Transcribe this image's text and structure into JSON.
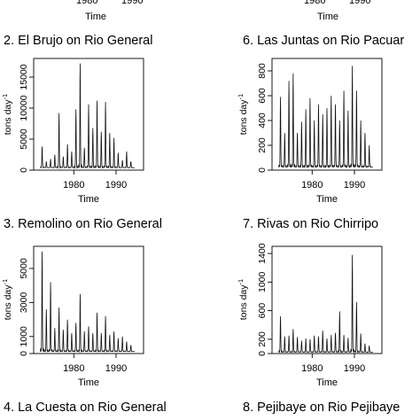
{
  "top_strip": {
    "left": {
      "ticks": [
        "1980",
        "1990"
      ],
      "xlabel": "Time"
    },
    "right": {
      "ticks": [
        "1980",
        "1990"
      ],
      "xlabel": "Time"
    }
  },
  "titles": [
    "2. El Brujo on Rio General",
    "6. Las Juntas on Rio Pacuar",
    "3. Remolino on Rio General",
    "7. Rivas on Rio Chirripo",
    "4. La Cuesta on Rio General",
    "8. Pejibaye on Rio Pejibaye"
  ],
  "chart_data": [
    {
      "type": "line",
      "title": "2. El Brujo on Rio General",
      "xlabel": "Time",
      "ylabel": "tons day-1",
      "xlim": [
        1970.5,
        1996.5
      ],
      "ylim": [
        0,
        18000
      ],
      "x_ticks": [
        1980,
        1990
      ],
      "y_ticks": [
        0,
        5000,
        10000,
        15000
      ],
      "x_start": 1972.0,
      "x_end": 1994.4,
      "peaks": [
        {
          "x": 1972.5,
          "y": 3800
        },
        {
          "x": 1973.5,
          "y": 1400
        },
        {
          "x": 1974.5,
          "y": 1800
        },
        {
          "x": 1975.5,
          "y": 2500
        },
        {
          "x": 1976.5,
          "y": 9200
        },
        {
          "x": 1977.5,
          "y": 2200
        },
        {
          "x": 1978.5,
          "y": 4200
        },
        {
          "x": 1979.5,
          "y": 3000
        },
        {
          "x": 1980.5,
          "y": 9800
        },
        {
          "x": 1981.5,
          "y": 17200
        },
        {
          "x": 1982.5,
          "y": 3600
        },
        {
          "x": 1983.5,
          "y": 10600
        },
        {
          "x": 1984.5,
          "y": 6800
        },
        {
          "x": 1985.5,
          "y": 11200
        },
        {
          "x": 1986.5,
          "y": 6200
        },
        {
          "x": 1987.5,
          "y": 11000
        },
        {
          "x": 1988.5,
          "y": 6000
        },
        {
          "x": 1989.5,
          "y": 5200
        },
        {
          "x": 1990.5,
          "y": 2800
        },
        {
          "x": 1991.5,
          "y": 1600
        },
        {
          "x": 1992.5,
          "y": 3000
        },
        {
          "x": 1993.5,
          "y": 1400
        }
      ],
      "baseline": 400
    },
    {
      "type": "line",
      "title": "6. Las Juntas on Rio Pacuar",
      "xlabel": "Time",
      "ylabel": "tons day-1",
      "xlim": [
        1970.5,
        1996.5
      ],
      "ylim": [
        0,
        900
      ],
      "x_ticks": [
        1980,
        1990
      ],
      "y_ticks": [
        0,
        200,
        400,
        600,
        800
      ],
      "x_start": 1972.0,
      "x_end": 1994.4,
      "peaks": [
        {
          "x": 1972.5,
          "y": 590
        },
        {
          "x": 1973.5,
          "y": 300
        },
        {
          "x": 1974.5,
          "y": 720
        },
        {
          "x": 1975.5,
          "y": 780
        },
        {
          "x": 1976.5,
          "y": 300
        },
        {
          "x": 1977.5,
          "y": 390
        },
        {
          "x": 1978.5,
          "y": 490
        },
        {
          "x": 1979.5,
          "y": 580
        },
        {
          "x": 1980.5,
          "y": 400
        },
        {
          "x": 1981.5,
          "y": 530
        },
        {
          "x": 1982.5,
          "y": 450
        },
        {
          "x": 1983.5,
          "y": 500
        },
        {
          "x": 1984.5,
          "y": 600
        },
        {
          "x": 1985.5,
          "y": 530
        },
        {
          "x": 1986.5,
          "y": 400
        },
        {
          "x": 1987.5,
          "y": 640
        },
        {
          "x": 1988.5,
          "y": 480
        },
        {
          "x": 1989.5,
          "y": 840
        },
        {
          "x": 1990.5,
          "y": 640
        },
        {
          "x": 1991.5,
          "y": 400
        },
        {
          "x": 1992.5,
          "y": 300
        },
        {
          "x": 1993.5,
          "y": 200
        }
      ],
      "baseline": 25
    },
    {
      "type": "line",
      "title": "3. Remolino on Rio General",
      "xlabel": "Time",
      "ylabel": "tons day-1",
      "xlim": [
        1970.5,
        1996.5
      ],
      "ylim": [
        0,
        6300
      ],
      "x_ticks": [
        1980,
        1990
      ],
      "y_ticks": [
        0,
        1000,
        3000,
        5000
      ],
      "x_start": 1972.0,
      "x_end": 1994.4,
      "peaks": [
        {
          "x": 1972.5,
          "y": 6000
        },
        {
          "x": 1973.5,
          "y": 2600
        },
        {
          "x": 1974.5,
          "y": 4200
        },
        {
          "x": 1975.5,
          "y": 1500
        },
        {
          "x": 1976.5,
          "y": 2700
        },
        {
          "x": 1977.5,
          "y": 1400
        },
        {
          "x": 1978.5,
          "y": 2000
        },
        {
          "x": 1979.5,
          "y": 1200
        },
        {
          "x": 1980.5,
          "y": 1800
        },
        {
          "x": 1981.5,
          "y": 3500
        },
        {
          "x": 1982.5,
          "y": 1300
        },
        {
          "x": 1983.5,
          "y": 1600
        },
        {
          "x": 1984.5,
          "y": 1200
        },
        {
          "x": 1985.5,
          "y": 2400
        },
        {
          "x": 1986.5,
          "y": 1200
        },
        {
          "x": 1987.5,
          "y": 2200
        },
        {
          "x": 1988.5,
          "y": 1100
        },
        {
          "x": 1989.5,
          "y": 1300
        },
        {
          "x": 1990.5,
          "y": 900
        },
        {
          "x": 1991.5,
          "y": 1000
        },
        {
          "x": 1992.5,
          "y": 700
        },
        {
          "x": 1993.5,
          "y": 500
        }
      ],
      "baseline": 120
    },
    {
      "type": "line",
      "title": "7. Rivas on Rio Chirripo",
      "xlabel": "Time",
      "ylabel": "tons day-1",
      "xlim": [
        1970.5,
        1996.5
      ],
      "ylim": [
        0,
        1500
      ],
      "x_ticks": [
        1980,
        1990
      ],
      "y_ticks": [
        0,
        200,
        600,
        1000,
        1400
      ],
      "x_start": 1972.0,
      "x_end": 1994.4,
      "peaks": [
        {
          "x": 1972.5,
          "y": 520
        },
        {
          "x": 1973.5,
          "y": 240
        },
        {
          "x": 1974.5,
          "y": 250
        },
        {
          "x": 1975.5,
          "y": 340
        },
        {
          "x": 1976.5,
          "y": 230
        },
        {
          "x": 1977.5,
          "y": 180
        },
        {
          "x": 1978.5,
          "y": 210
        },
        {
          "x": 1979.5,
          "y": 200
        },
        {
          "x": 1980.5,
          "y": 250
        },
        {
          "x": 1981.5,
          "y": 240
        },
        {
          "x": 1982.5,
          "y": 320
        },
        {
          "x": 1983.5,
          "y": 210
        },
        {
          "x": 1984.5,
          "y": 260
        },
        {
          "x": 1985.5,
          "y": 290
        },
        {
          "x": 1986.5,
          "y": 590
        },
        {
          "x": 1987.5,
          "y": 260
        },
        {
          "x": 1988.5,
          "y": 220
        },
        {
          "x": 1989.5,
          "y": 1380
        },
        {
          "x": 1990.5,
          "y": 720
        },
        {
          "x": 1991.5,
          "y": 280
        },
        {
          "x": 1992.5,
          "y": 140
        },
        {
          "x": 1993.5,
          "y": 110
        }
      ],
      "baseline": 20
    }
  ]
}
